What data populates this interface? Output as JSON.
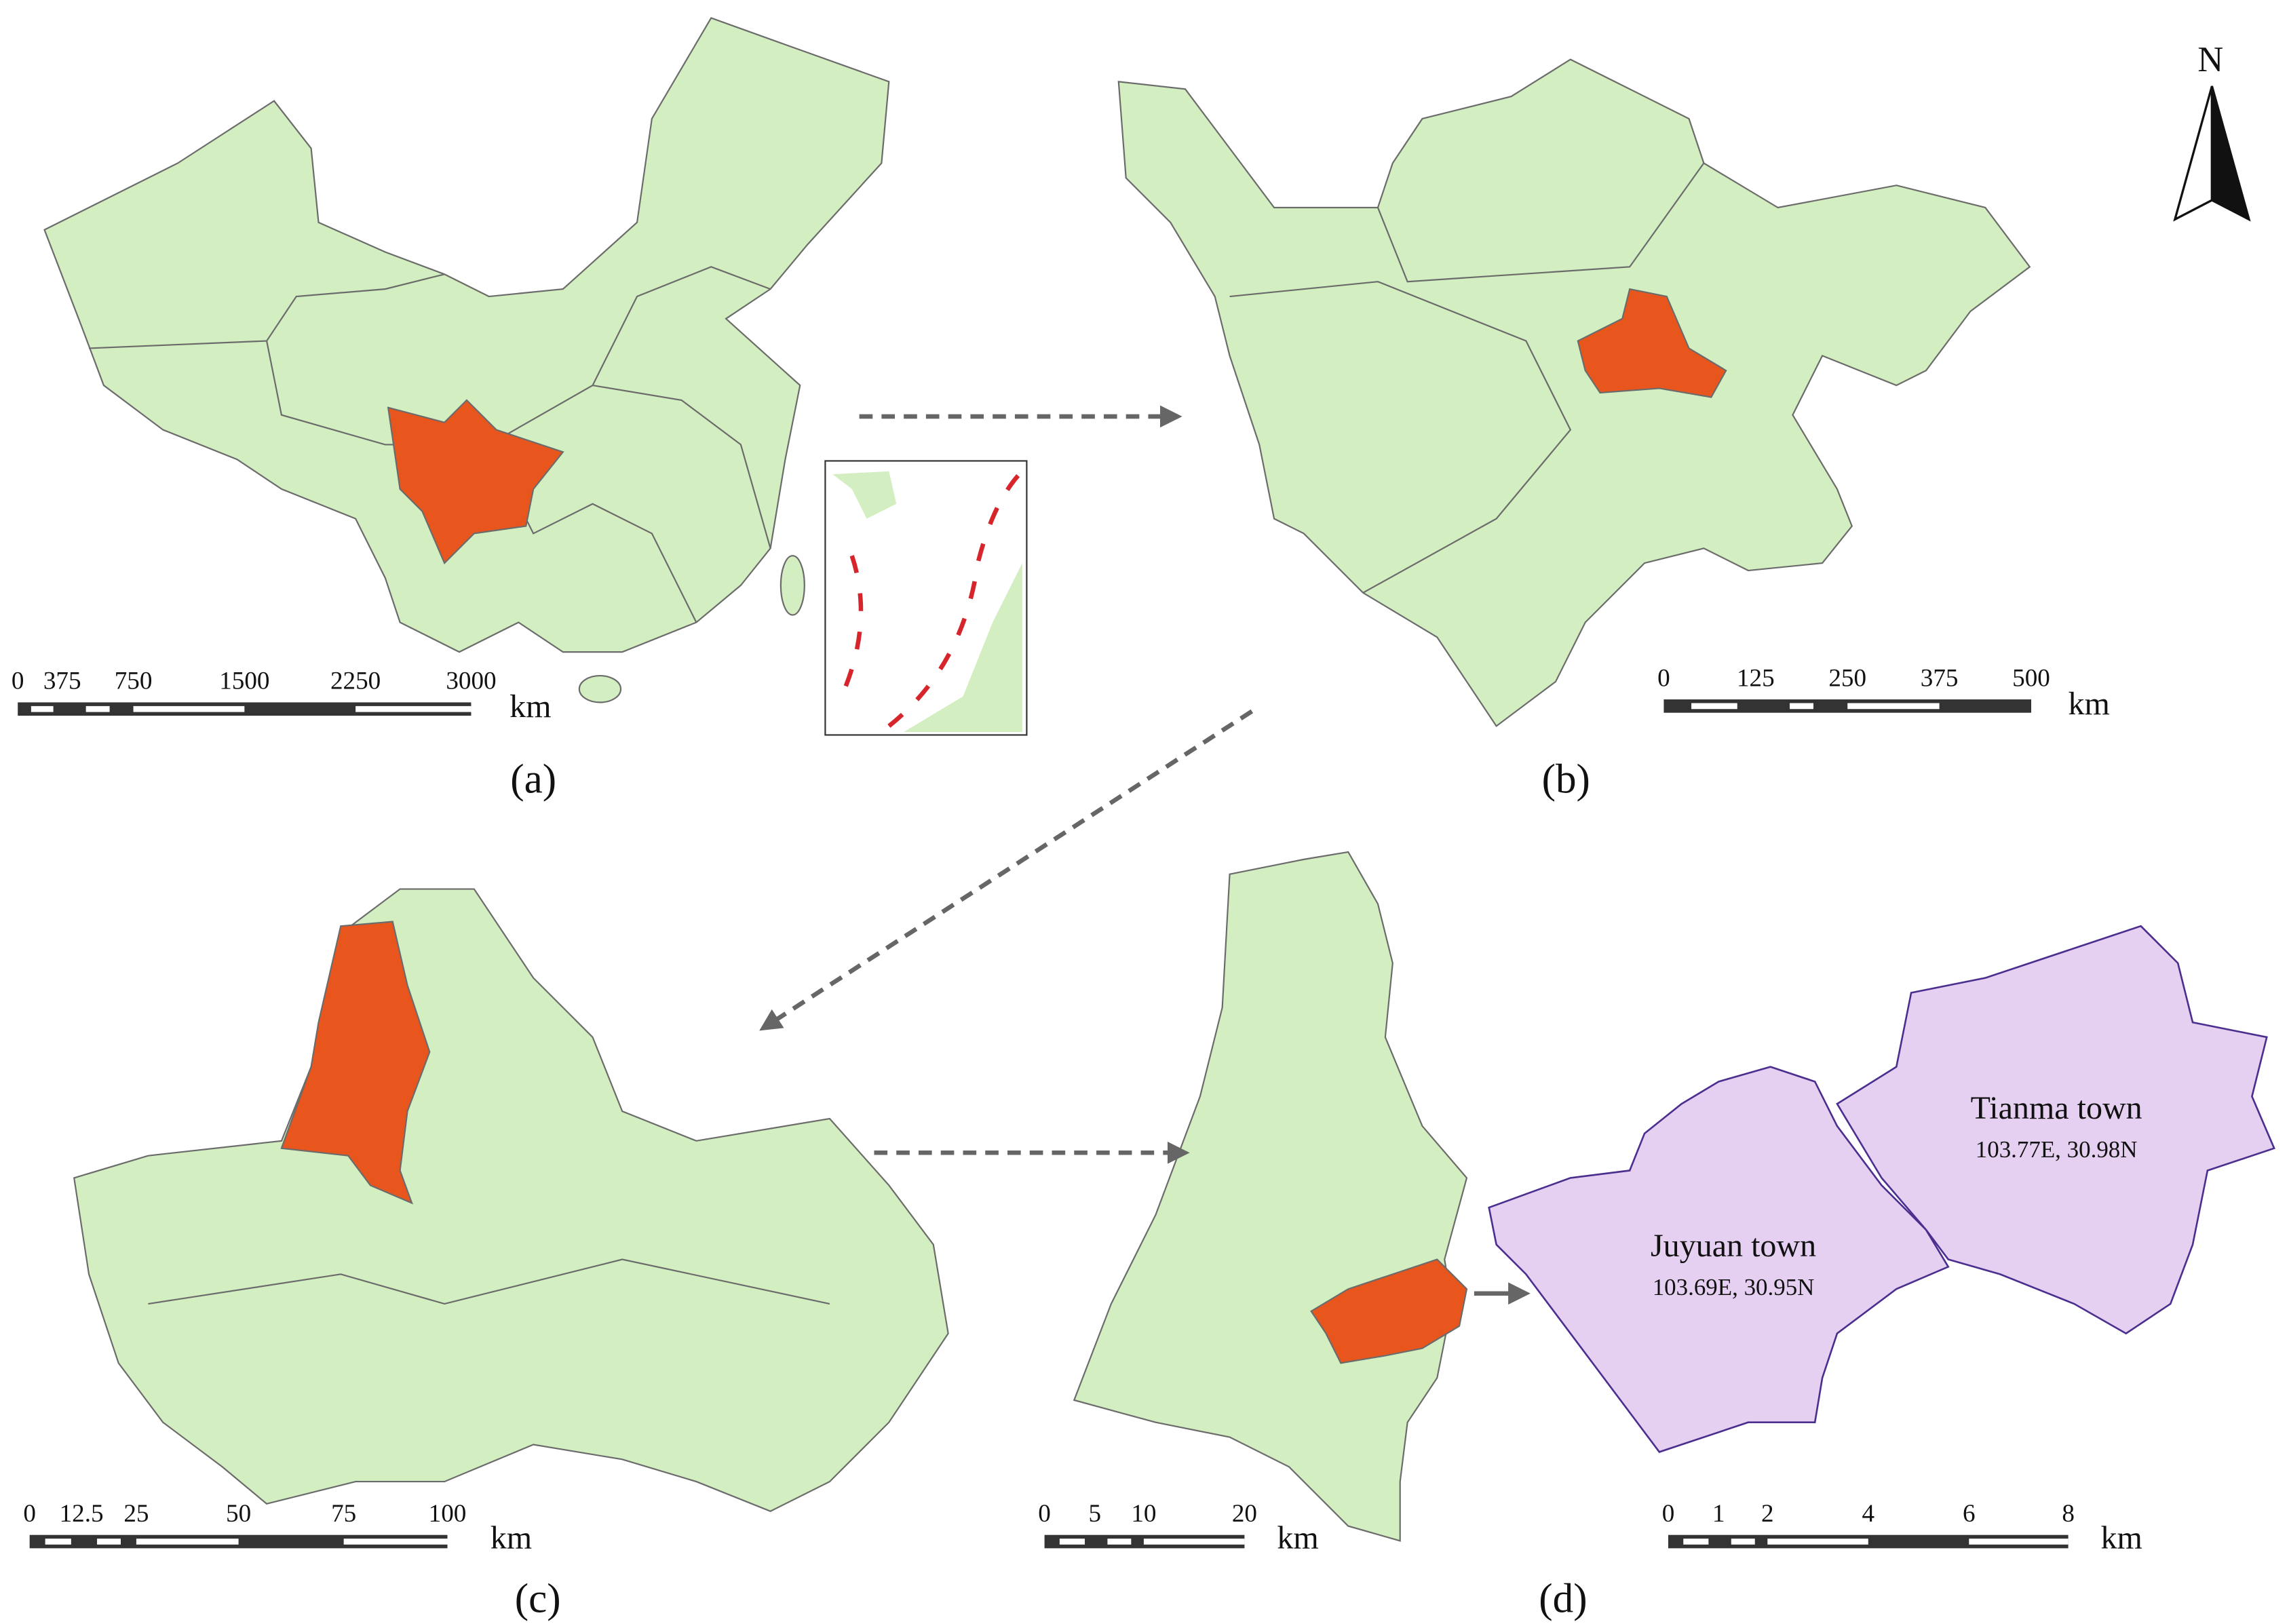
{
  "panels": [
    {
      "label": "(a)",
      "scale_bar": {
        "ticks": [
          "0",
          "375",
          "750",
          "1500",
          "2250",
          "3000"
        ],
        "unit": "km"
      }
    },
    {
      "label": "(b)",
      "scale_bar": {
        "ticks": [
          "0",
          "125",
          "250",
          "375",
          "500"
        ],
        "unit": "km"
      }
    },
    {
      "label": "(c)",
      "scale_bar": {
        "ticks": [
          "0",
          "12.5",
          "25",
          "50",
          "75",
          "100"
        ],
        "unit": "km"
      }
    },
    {
      "label": "(d)",
      "scale_bars": [
        {
          "ticks": [
            "0",
            "5",
            "10",
            "20"
          ],
          "unit": "km"
        },
        {
          "ticks": [
            "0",
            "1",
            "2",
            "4",
            "6",
            "8"
          ],
          "unit": "km"
        }
      ]
    }
  ],
  "north_arrow": "N",
  "towns": [
    {
      "name": "Juyuan town",
      "coords": "103.69E, 30.95N"
    },
    {
      "name": "Tianma town",
      "coords": "103.77E, 30.98N"
    }
  ]
}
